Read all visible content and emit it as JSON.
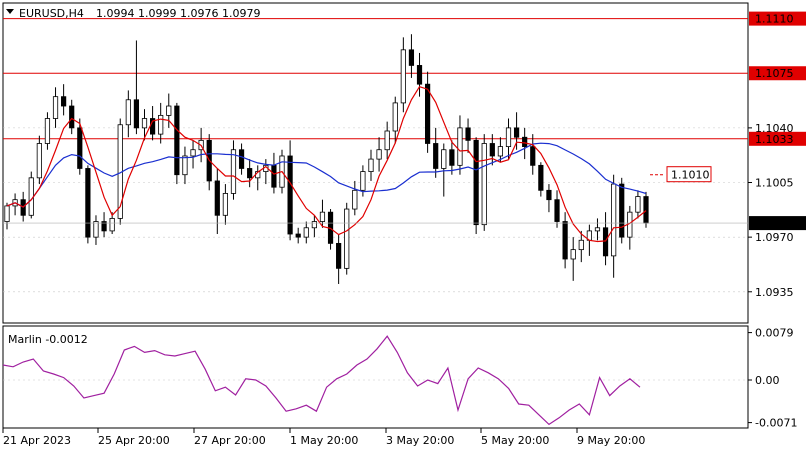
{
  "header": {
    "symbol_timeframe": "EURUSD,H4",
    "ohlc": "1.0994 1.0999 1.0976 1.0979"
  },
  "indicator": {
    "label": "Marlin -0.0012"
  },
  "colors": {
    "bull_body": "#ffffff",
    "bear_body": "#000000",
    "level_line": "#e00000",
    "ma_red": "#e00000",
    "ma_blue": "#1a2fd0",
    "oscillator": "#a020a0",
    "grid": "#c8c8c8",
    "price_tag_bg": "#000000",
    "price_tag_text": "#ffffff"
  },
  "chart_data": {
    "type": "candlestick",
    "price_axis": {
      "ticks": [
        1.0935,
        1.097,
        1.1005,
        1.104
      ],
      "tick_labels": [
        "1.0935",
        "1.0970",
        "1.1005",
        "1.1040"
      ],
      "range": [
        1.0915,
        1.112
      ]
    },
    "time_axis": {
      "tick_labels": [
        "21 Apr 2023",
        "25 Apr 20:00",
        "27 Apr 20:00",
        "1 May 20:00",
        "3 May 20:00",
        "5 May 20:00",
        "9 May 20:00"
      ]
    },
    "levels": [
      {
        "value": 1.111,
        "label": "1.1110"
      },
      {
        "value": 1.1075,
        "label": "1.1075"
      },
      {
        "value": 1.1033,
        "label": "1.1033"
      }
    ],
    "target_label": {
      "value": 1.101,
      "label": "1.1010"
    },
    "current_price": {
      "value": 1.0979,
      "label": "1.0979"
    },
    "candles": [
      [
        1.098,
        1.0992,
        1.0975,
        1.099
      ],
      [
        1.099,
        1.0998,
        1.0984,
        1.0994
      ],
      [
        1.0994,
        1.0999,
        1.098,
        1.0984
      ],
      [
        1.0984,
        1.1012,
        1.0982,
        1.1008
      ],
      [
        1.1008,
        1.1035,
        1.1004,
        1.103
      ],
      [
        1.103,
        1.105,
        1.1026,
        1.1046
      ],
      [
        1.1046,
        1.1066,
        1.104,
        1.106
      ],
      [
        1.106,
        1.1068,
        1.1048,
        1.1054
      ],
      [
        1.1054,
        1.1058,
        1.1036,
        1.104
      ],
      [
        1.104,
        1.1046,
        1.101,
        1.1014
      ],
      [
        1.1014,
        1.1016,
        1.0966,
        1.097
      ],
      [
        1.097,
        1.0984,
        1.0965,
        1.098
      ],
      [
        1.098,
        1.0986,
        1.097,
        1.0974
      ],
      [
        1.0974,
        1.0986,
        1.0972,
        1.0982
      ],
      [
        1.0982,
        1.1046,
        1.0978,
        1.1042
      ],
      [
        1.1042,
        1.1064,
        1.1034,
        1.1058
      ],
      [
        1.1058,
        1.1096,
        1.1036,
        1.104
      ],
      [
        1.104,
        1.1052,
        1.1032,
        1.1046
      ],
      [
        1.1046,
        1.1054,
        1.1032,
        1.1036
      ],
      [
        1.1036,
        1.1056,
        1.103,
        1.1048
      ],
      [
        1.1048,
        1.1062,
        1.104,
        1.1054
      ],
      [
        1.1054,
        1.1056,
        1.1004,
        1.101
      ],
      [
        1.101,
        1.1028,
        1.1004,
        1.1022
      ],
      [
        1.1022,
        1.1032,
        1.1014,
        1.1026
      ],
      [
        1.1026,
        1.104,
        1.1018,
        1.1032
      ],
      [
        1.1032,
        1.1036,
        1.1,
        1.1006
      ],
      [
        1.1006,
        1.1014,
        1.0972,
        1.0984
      ],
      [
        1.0984,
        1.1004,
        1.0978,
        1.0998
      ],
      [
        1.0998,
        1.1032,
        1.0994,
        1.1026
      ],
      [
        1.1026,
        1.103,
        1.101,
        1.1014
      ],
      [
        1.1014,
        1.102,
        1.1002,
        1.1008
      ],
      [
        1.1008,
        1.1016,
        1.1,
        1.1012
      ],
      [
        1.1012,
        1.102,
        1.1004,
        1.1016
      ],
      [
        1.1016,
        1.1024,
        1.0998,
        1.1002
      ],
      [
        1.1002,
        1.1026,
        1.0998,
        1.1022
      ],
      [
        1.1022,
        1.1032,
        1.0968,
        1.0972
      ],
      [
        1.0972,
        1.0976,
        1.0966,
        1.097
      ],
      [
        1.097,
        1.098,
        1.0966,
        1.0976
      ],
      [
        1.0976,
        1.0984,
        1.097,
        1.098
      ],
      [
        1.098,
        1.0994,
        1.0976,
        1.0986
      ],
      [
        1.0986,
        1.0988,
        1.0962,
        1.0966
      ],
      [
        1.0966,
        1.0972,
        1.094,
        1.095
      ],
      [
        1.095,
        1.0992,
        1.0946,
        1.0988
      ],
      [
        1.0988,
        1.1006,
        1.0984,
        1.1
      ],
      [
        1.1,
        1.1016,
        1.0996,
        1.1012
      ],
      [
        1.1012,
        1.1026,
        1.1006,
        1.102
      ],
      [
        1.102,
        1.1034,
        1.1012,
        1.1026
      ],
      [
        1.1026,
        1.1044,
        1.102,
        1.1038
      ],
      [
        1.1038,
        1.106,
        1.103,
        1.1056
      ],
      [
        1.1056,
        1.1098,
        1.105,
        1.109
      ],
      [
        1.109,
        1.11,
        1.1072,
        1.108
      ],
      [
        1.108,
        1.1088,
        1.106,
        1.1068
      ],
      [
        1.1068,
        1.1076,
        1.1024,
        1.103
      ],
      [
        1.103,
        1.104,
        1.1008,
        1.1014
      ],
      [
        1.1014,
        1.103,
        1.0996,
        1.1026
      ],
      [
        1.1026,
        1.1032,
        1.101,
        1.1016
      ],
      [
        1.1016,
        1.1048,
        1.101,
        1.104
      ],
      [
        1.104,
        1.1046,
        1.1024,
        1.1032
      ],
      [
        1.1032,
        1.1034,
        1.0972,
        1.0978
      ],
      [
        1.0978,
        1.1036,
        1.0974,
        1.103
      ],
      [
        1.103,
        1.1036,
        1.1016,
        1.1022
      ],
      [
        1.1022,
        1.1034,
        1.1018,
        1.1028
      ],
      [
        1.1028,
        1.1046,
        1.102,
        1.104
      ],
      [
        1.104,
        1.105,
        1.1026,
        1.1034
      ],
      [
        1.1034,
        1.104,
        1.102,
        1.1028
      ],
      [
        1.1028,
        1.1036,
        1.101,
        1.1016
      ],
      [
        1.1016,
        1.1018,
        1.0996,
        1.1
      ],
      [
        1.1,
        1.1004,
        1.0986,
        1.0994
      ],
      [
        1.0994,
        1.1,
        1.0976,
        1.098
      ],
      [
        1.098,
        1.0986,
        1.095,
        1.0956
      ],
      [
        1.0956,
        1.097,
        1.0942,
        1.0962
      ],
      [
        1.0962,
        1.0974,
        1.0954,
        1.0968
      ],
      [
        1.0968,
        1.0978,
        1.0958,
        1.0974
      ],
      [
        1.0974,
        1.0982,
        1.0968,
        1.0976
      ],
      [
        1.0976,
        1.0986,
        1.0952,
        1.0958
      ],
      [
        1.0958,
        1.101,
        1.0944,
        1.1004
      ],
      [
        1.1004,
        1.1008,
        1.0966,
        1.097
      ],
      [
        1.097,
        1.099,
        1.0962,
        1.0986
      ],
      [
        1.0986,
        1.1,
        1.0982,
        1.0996
      ],
      [
        1.0996,
        1.0999,
        1.0976,
        1.0979
      ]
    ],
    "ma_red_label": "",
    "oscillator": {
      "name": "Marlin",
      "ticks": [
        0.0079,
        0.0,
        -0.0071
      ],
      "tick_labels": [
        "0.0079",
        "0.00",
        "-0.0071"
      ],
      "range": [
        -0.008,
        0.009
      ],
      "values": [
        0.0025,
        0.0022,
        0.003,
        0.0035,
        0.0015,
        0.001,
        0.0004,
        -0.001,
        -0.003,
        -0.0026,
        -0.0022,
        0.001,
        0.005,
        0.0056,
        0.0046,
        0.0049,
        0.0042,
        0.004,
        0.0044,
        0.0048,
        0.0018,
        -0.0018,
        -0.0012,
        -0.0025,
        0.0002,
        0.0,
        -0.001,
        -0.003,
        -0.0052,
        -0.0048,
        -0.0042,
        -0.0052,
        -0.0012,
        0.0002,
        0.001,
        0.0025,
        0.0035,
        0.0052,
        0.0073,
        0.0046,
        0.0012,
        -0.001,
        0.0,
        -0.0006,
        0.002,
        -0.005,
        0.0002,
        0.002,
        0.0012,
        0.0002,
        -0.0014,
        -0.004,
        -0.0042,
        -0.0058,
        -0.0074,
        -0.0063,
        -0.005,
        -0.004,
        -0.0058,
        0.0004,
        -0.0026,
        -0.001,
        0.0002,
        -0.0012
      ]
    }
  }
}
